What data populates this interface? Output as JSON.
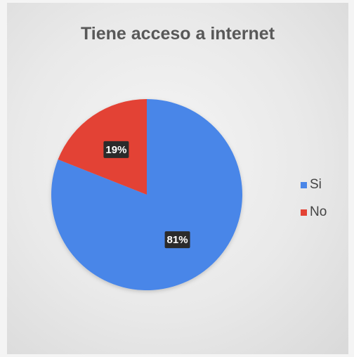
{
  "chart_data": {
    "type": "pie",
    "title": "Tiene acceso a internet",
    "categories": [
      "Si",
      "No"
    ],
    "values": [
      81,
      19
    ],
    "data_labels": [
      "81%",
      "19%"
    ],
    "colors": [
      "#4a86e8",
      "#e34234"
    ],
    "legend": "right"
  }
}
